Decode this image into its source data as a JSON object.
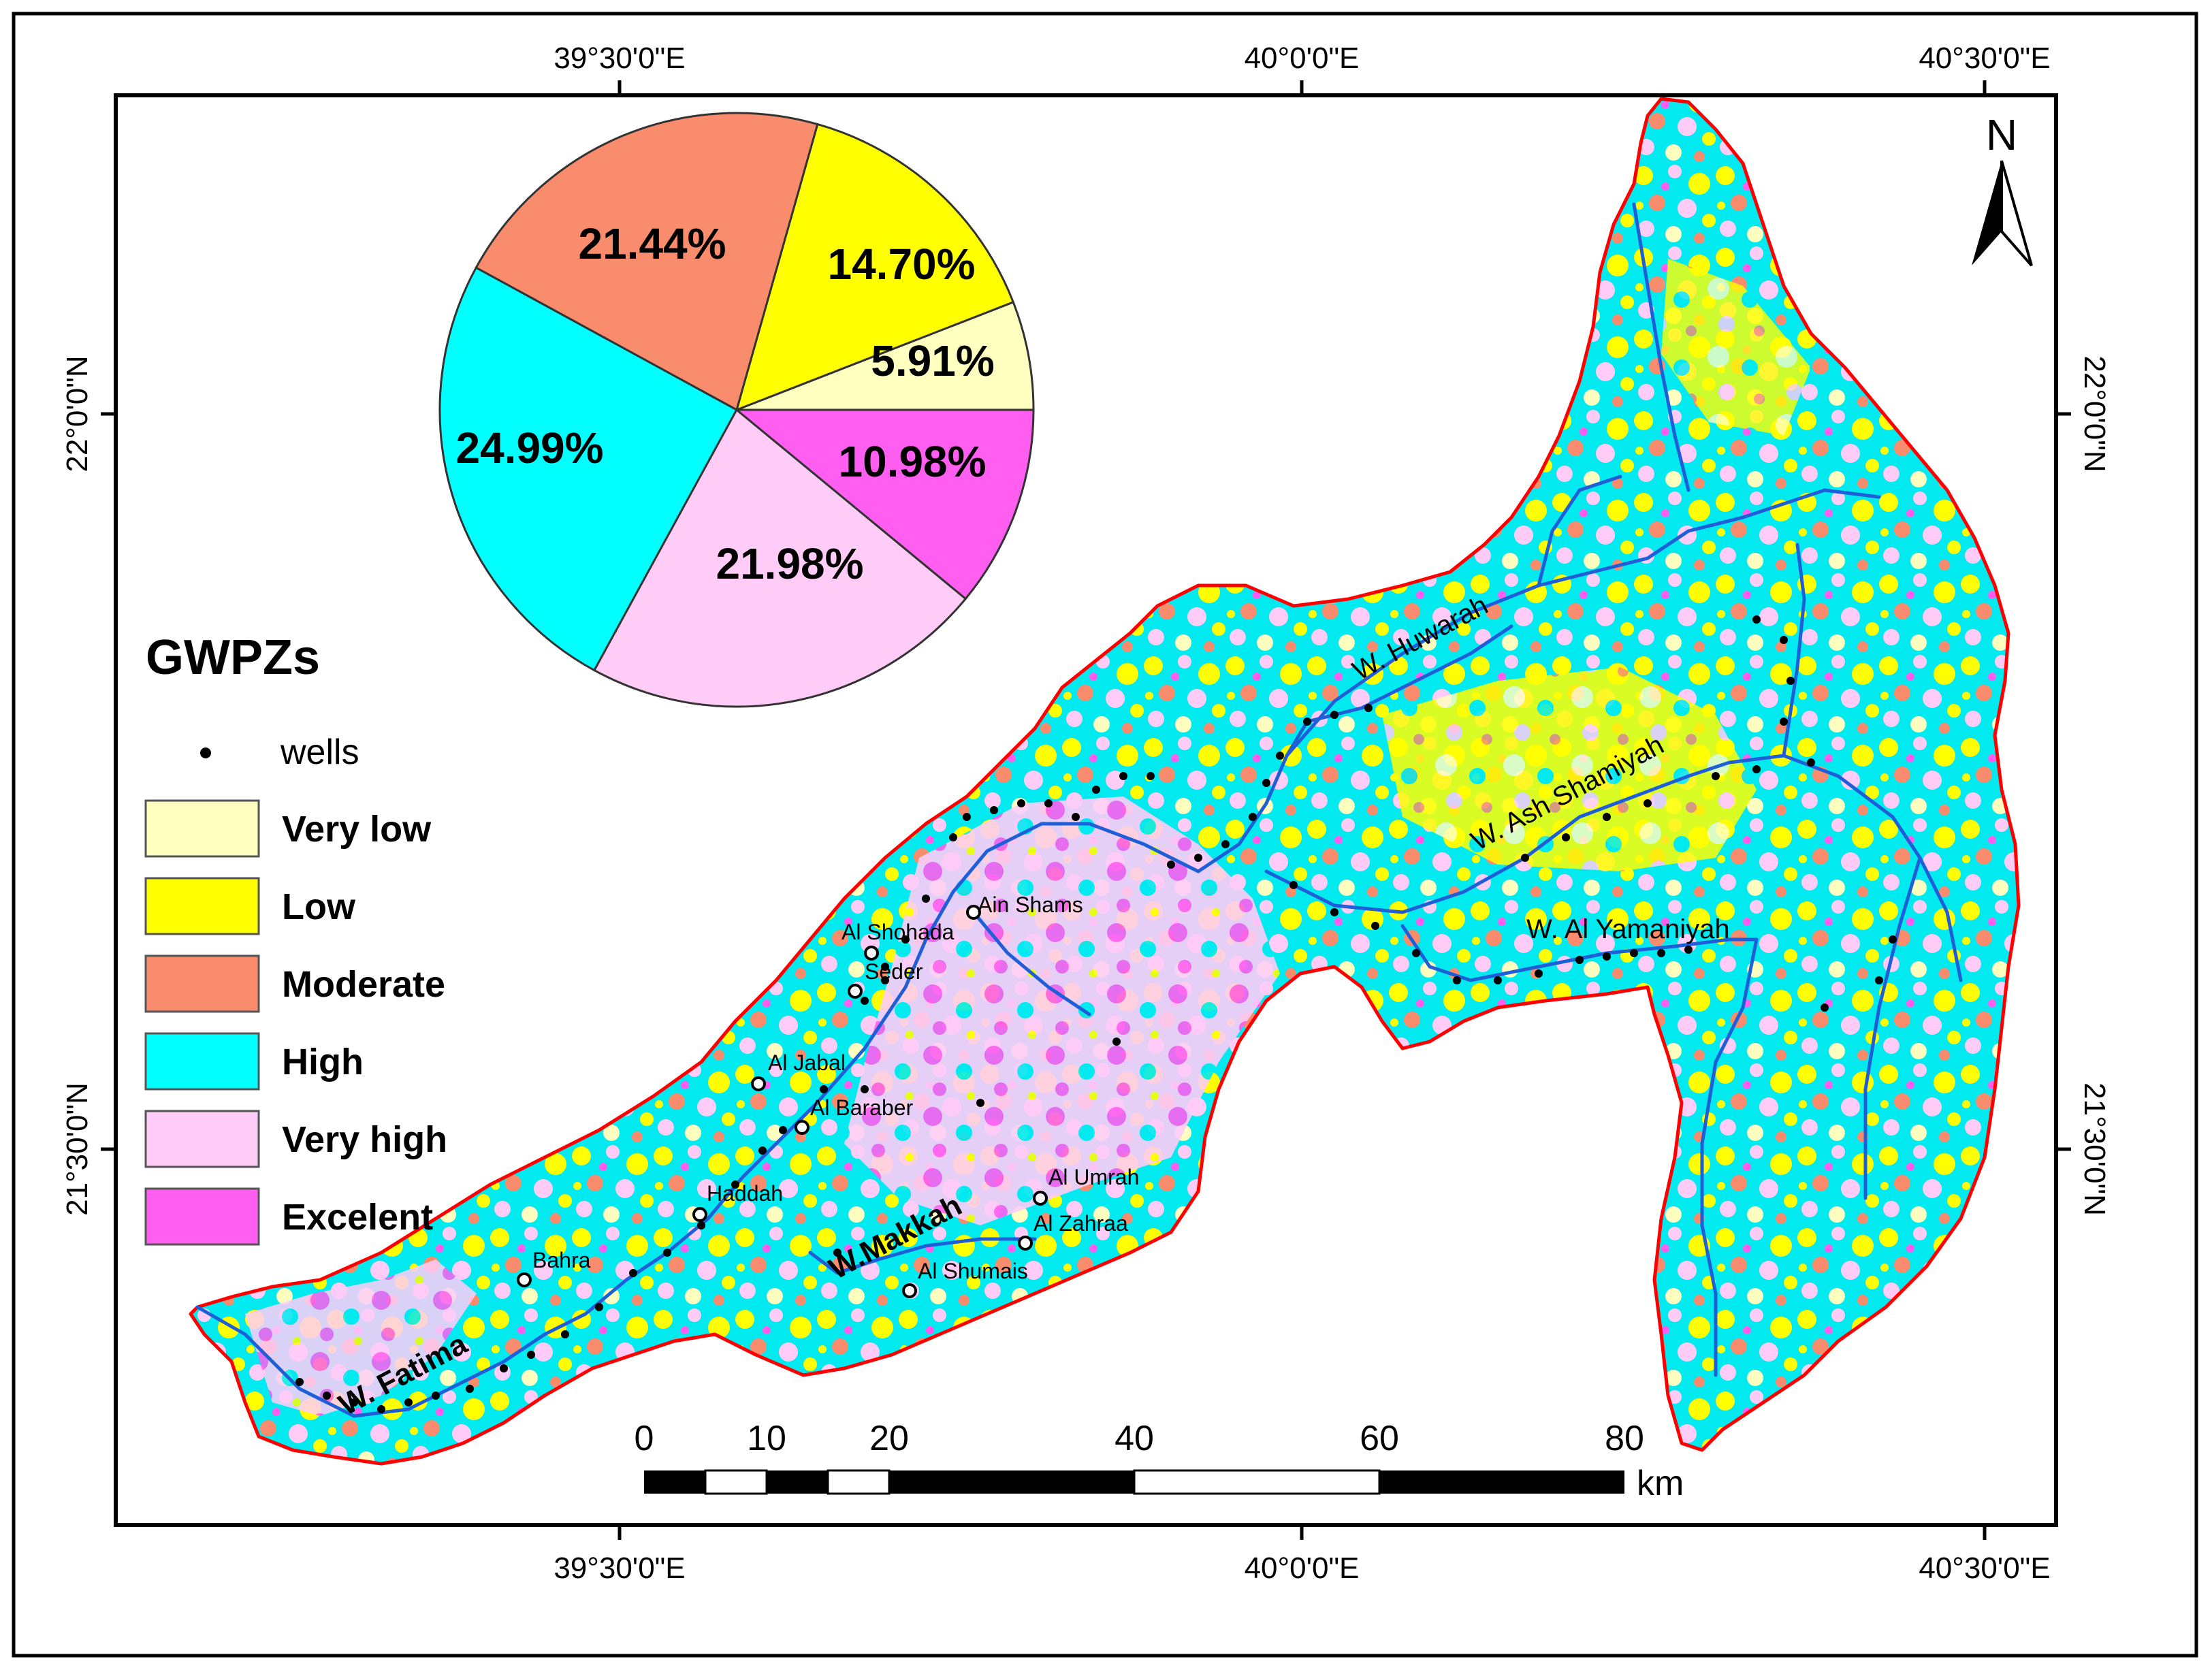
{
  "map": {
    "top_ticks": [
      "39°30'0\"E",
      "40°0'0\"E",
      "40°30'0\"E"
    ],
    "bottom_ticks": [
      "39°30'0\"E",
      "40°0'0\"E",
      "40°30'0\"E"
    ],
    "left_ticks": [
      "22°0'0\"N",
      "21°30'0\"N"
    ],
    "right_ticks": [
      "22°0'0\"N",
      "21°30'0\"N"
    ],
    "north_label": "N"
  },
  "legend": {
    "title": "GWPZs",
    "wells_label": "wells",
    "classes": [
      {
        "label": "Very low",
        "color": "#ffffc0"
      },
      {
        "label": "Low",
        "color": "#ffff00"
      },
      {
        "label": "Moderate",
        "color": "#fa8c6e"
      },
      {
        "label": "High",
        "color": "#00ffff"
      },
      {
        "label": "Very high",
        "color": "#ffccf7"
      },
      {
        "label": "Excelent",
        "color": "#ff5ef0"
      }
    ]
  },
  "chart_data": {
    "type": "pie",
    "slices": [
      {
        "class": "Very low",
        "value": 5.91,
        "label": "5.91%",
        "color": "#ffffc0"
      },
      {
        "class": "Low",
        "value": 14.7,
        "label": "14.70%",
        "color": "#ffff00"
      },
      {
        "class": "Moderate",
        "value": 21.44,
        "label": "21.44%",
        "color": "#fa8c6e"
      },
      {
        "class": "High",
        "value": 24.99,
        "label": "24.99%",
        "color": "#00ffff"
      },
      {
        "class": "Very high",
        "value": 21.98,
        "label": "21.98%",
        "color": "#ffccf7"
      },
      {
        "class": "Excelent",
        "value": 10.98,
        "label": "10.98%",
        "color": "#ff5ef0"
      }
    ]
  },
  "places": [
    "Ain Shams",
    "Al Shohada",
    "Seder",
    "Al Jabal",
    "Al Baraber",
    "Haddah",
    "Bahra",
    "Al Umrah",
    "Al Zahraa",
    "Al Shumais"
  ],
  "wadis": [
    "W. Huwarah",
    "W. Ash Shamiyah",
    "W. Al Yamaniyah",
    "W.Makkah",
    "W. Fatima"
  ],
  "scale_bar": {
    "ticks": [
      "0",
      "10",
      "20",
      "40",
      "60",
      "80"
    ],
    "unit": "km"
  }
}
